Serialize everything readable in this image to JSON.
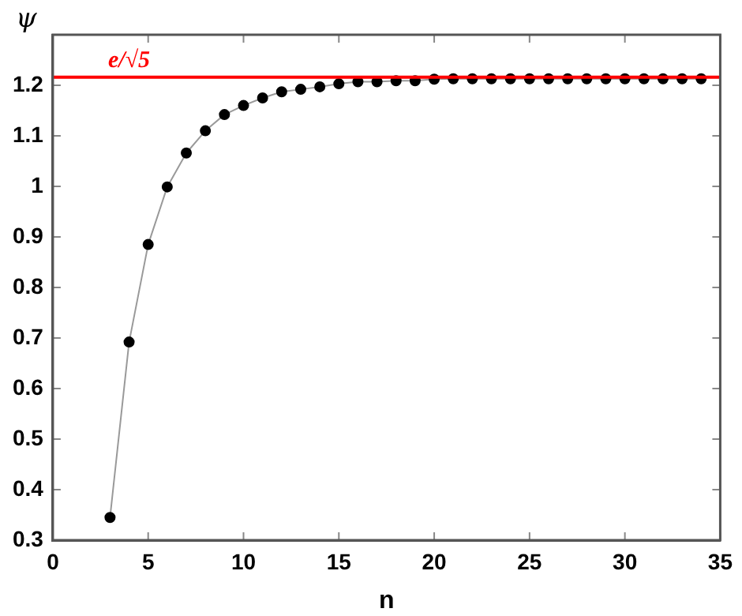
{
  "chart_data": {
    "type": "line",
    "xlabel": "n",
    "ylabel": "ψ",
    "x": [
      3,
      4,
      5,
      6,
      7,
      8,
      9,
      10,
      11,
      12,
      13,
      14,
      15,
      16,
      17,
      18,
      19,
      20,
      21,
      22,
      23,
      24,
      25,
      26,
      27,
      28,
      29,
      30,
      31,
      32,
      33,
      34
    ],
    "series": [
      {
        "color": "#000000",
        "values": [
          0.345,
          0.692,
          0.885,
          0.999,
          1.066,
          1.11,
          1.142,
          1.16,
          1.175,
          1.187,
          1.192,
          1.197,
          1.203,
          1.207,
          1.207,
          1.209,
          1.209,
          1.212,
          1.213,
          1.213,
          1.213,
          1.213,
          1.213,
          1.213,
          1.213,
          1.213,
          1.213,
          1.213,
          1.213,
          1.213,
          1.213,
          1.213
        ]
      }
    ],
    "marker": "circle",
    "line_style": "solid",
    "grid": false,
    "legend": false,
    "xlim": [
      0,
      35
    ],
    "xticks": [
      0,
      5,
      10,
      15,
      20,
      25,
      30,
      35
    ],
    "ylim": [
      0.3,
      1.3
    ],
    "yticks": [
      0.3,
      0.4,
      0.5,
      0.6,
      0.7,
      0.8,
      0.9,
      1,
      1.1,
      1.2
    ],
    "ref_lines": [
      {
        "axis": "y",
        "value": 1.216,
        "label": "e/√5",
        "color": "#ff0000"
      }
    ]
  }
}
